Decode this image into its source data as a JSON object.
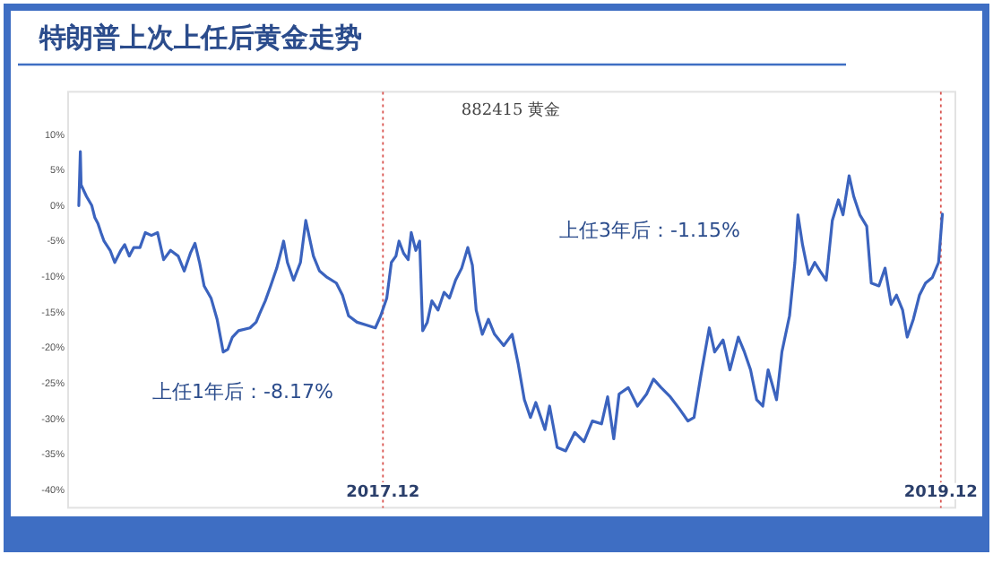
{
  "chart_data": {
    "type": "line",
    "title": "特朗普上次上任后黄金走势",
    "subtitle": "882415 黄金",
    "x": [
      "2016-10-29",
      "2016-10-31",
      "2016-11-01",
      "2016-11-08",
      "2016-11-15",
      "2016-11-19",
      "2016-11-23",
      "2016-11-27",
      "2016-12-01",
      "2016-12-09",
      "2016-12-15",
      "2016-12-23",
      "2016-12-28",
      "2017-01-03",
      "2017-01-09",
      "2017-01-17",
      "2017-01-24",
      "2017-02-01",
      "2017-02-09",
      "2017-02-17",
      "2017-02-26",
      "2017-03-08",
      "2017-03-16",
      "2017-03-24",
      "2017-03-30",
      "2017-04-05",
      "2017-04-11",
      "2017-04-20",
      "2017-04-28",
      "2017-05-06",
      "2017-05-12",
      "2017-05-18",
      "2017-05-26",
      "2017-06-10",
      "2017-06-18",
      "2017-06-23",
      "2017-06-30",
      "2017-07-07",
      "2017-07-15",
      "2017-07-21",
      "2017-07-24",
      "2017-07-29",
      "2017-08-06",
      "2017-08-15",
      "2017-08-22",
      "2017-08-27",
      "2017-09-01",
      "2017-09-09",
      "2017-09-19",
      "2017-10-01",
      "2017-10-09",
      "2017-10-17",
      "2017-10-28",
      "2017-11-09",
      "2017-11-21",
      "2017-11-28",
      "2017-12-06",
      "2017-12-12",
      "2017-12-18",
      "2017-12-22",
      "2017-12-28",
      "2018-01-03",
      "2018-01-07",
      "2018-01-13",
      "2018-01-18",
      "2018-01-22",
      "2018-01-28",
      "2018-02-03",
      "2018-02-11",
      "2018-02-19",
      "2018-02-26",
      "2018-03-06",
      "2018-03-14",
      "2018-03-22",
      "2018-03-28",
      "2018-04-02",
      "2018-04-10",
      "2018-04-18",
      "2018-04-26",
      "2018-05-08",
      "2018-05-19",
      "2018-05-27",
      "2018-06-04",
      "2018-06-12",
      "2018-06-19",
      "2018-07-01",
      "2018-07-07",
      "2018-07-17",
      "2018-07-28",
      "2018-08-09",
      "2018-08-21",
      "2018-09-01",
      "2018-09-13",
      "2018-09-21",
      "2018-09-29",
      "2018-10-06",
      "2018-10-18",
      "2018-10-30",
      "2018-11-11",
      "2018-11-20",
      "2018-11-30",
      "2018-12-12",
      "2018-12-24",
      "2019-01-04",
      "2019-01-12",
      "2019-01-21",
      "2019-02-01",
      "2019-02-08",
      "2019-02-19",
      "2019-02-28",
      "2019-03-11",
      "2019-03-19",
      "2019-03-27",
      "2019-04-04",
      "2019-04-12",
      "2019-04-19",
      "2019-04-30",
      "2019-05-07",
      "2019-05-17",
      "2019-05-24",
      "2019-05-28",
      "2019-06-03",
      "2019-06-11",
      "2019-06-19",
      "2019-06-26",
      "2019-07-04",
      "2019-07-12",
      "2019-07-20",
      "2019-07-26",
      "2019-08-03",
      "2019-08-09",
      "2019-08-17",
      "2019-08-26",
      "2019-09-01",
      "2019-09-11",
      "2019-09-19",
      "2019-09-27",
      "2019-10-04",
      "2019-10-12",
      "2019-10-18",
      "2019-10-26",
      "2019-11-03",
      "2019-11-11",
      "2019-11-20",
      "2019-11-28",
      "2019-12-03"
    ],
    "series": [
      {
        "color": "#3b63be",
        "values": [
          0,
          7.6,
          2.9,
          1.3,
          0,
          -1.7,
          -2.5,
          -3.8,
          -5,
          -6.3,
          -8,
          -6.3,
          -5.5,
          -7.1,
          -5.9,
          -5.9,
          -3.8,
          -4.2,
          -3.8,
          -7.6,
          -6.3,
          -7.1,
          -9.2,
          -6.7,
          -5.3,
          -8,
          -11.3,
          -13,
          -16,
          -20.6,
          -20.2,
          -18.5,
          -17.6,
          -17.2,
          -16.4,
          -15.1,
          -13.4,
          -11.3,
          -8.8,
          -6.3,
          -5,
          -8,
          -10.5,
          -8,
          -2.1,
          -4.6,
          -7.1,
          -9.2,
          -10.1,
          -10.9,
          -12.6,
          -15.5,
          -16.4,
          -16.8,
          -17.2,
          -15.5,
          -13,
          -8,
          -7.1,
          -5,
          -6.7,
          -7.6,
          -3.8,
          -6.3,
          -5,
          -17.6,
          -16.4,
          -13.4,
          -14.7,
          -12.2,
          -13,
          -10.5,
          -8.8,
          -5.9,
          -8.4,
          -14.7,
          -18.1,
          -16,
          -18.1,
          -19.7,
          -18.1,
          -22.3,
          -27.3,
          -29.8,
          -27.7,
          -31.5,
          -28.2,
          -34,
          -34.5,
          -31.9,
          -33.2,
          -30.3,
          -30.7,
          -26.9,
          -32.8,
          -26.5,
          -25.6,
          -28.2,
          -26.5,
          -24.4,
          -25.6,
          -26.9,
          -28.6,
          -30.3,
          -29.8,
          -23.9,
          -17.2,
          -20.6,
          -18.9,
          -23.1,
          -18.5,
          -20.6,
          -23.1,
          -27.3,
          -28.2,
          -23.1,
          -27.3,
          -20.6,
          -15.5,
          -8,
          -1.3,
          -5.5,
          -9.7,
          -8,
          -9.2,
          -10.5,
          -2.1,
          0.8,
          -1.3,
          4.2,
          1.3,
          -1.3,
          -2.9,
          -10.9,
          -11.3,
          -8.8,
          -13.9,
          -12.6,
          -14.7,
          -18.5,
          -16,
          -12.6,
          -10.9,
          -10.1,
          -8,
          -1.2
        ]
      }
    ],
    "xlim": [
      "2016-10-15",
      "2019-12-20"
    ],
    "ylim": [
      -42.5,
      16
    ],
    "xticks": [
      {
        "value": "2017-12",
        "label": "2017.12"
      },
      {
        "value": "2019-12",
        "label": "2019.12"
      }
    ],
    "yticks": [
      {
        "value": 10,
        "label": "10%"
      },
      {
        "value": 5,
        "label": "5%"
      },
      {
        "value": 0,
        "label": "0%"
      },
      {
        "value": -5,
        "label": "-5%"
      },
      {
        "value": -10,
        "label": "-10%"
      },
      {
        "value": -15,
        "label": "-15%"
      },
      {
        "value": -20,
        "label": "-20%"
      },
      {
        "value": -25,
        "label": "-25%"
      },
      {
        "value": -30,
        "label": "-30%"
      },
      {
        "value": -35,
        "label": "-35%"
      },
      {
        "value": -40,
        "label": "-40%"
      }
    ],
    "grid": false,
    "marker": "none",
    "line_style": "solid",
    "ref_lines": [
      {
        "axis": "x",
        "value": "2017-12",
        "color": "#d9534f",
        "line_style": "dotted"
      },
      {
        "axis": "x",
        "value": "2019-12",
        "color": "#d9534f",
        "line_style": "dotted"
      }
    ],
    "annotations": [
      "上任1年后：-8.17%",
      "上任3年后：-1.15%"
    ]
  }
}
